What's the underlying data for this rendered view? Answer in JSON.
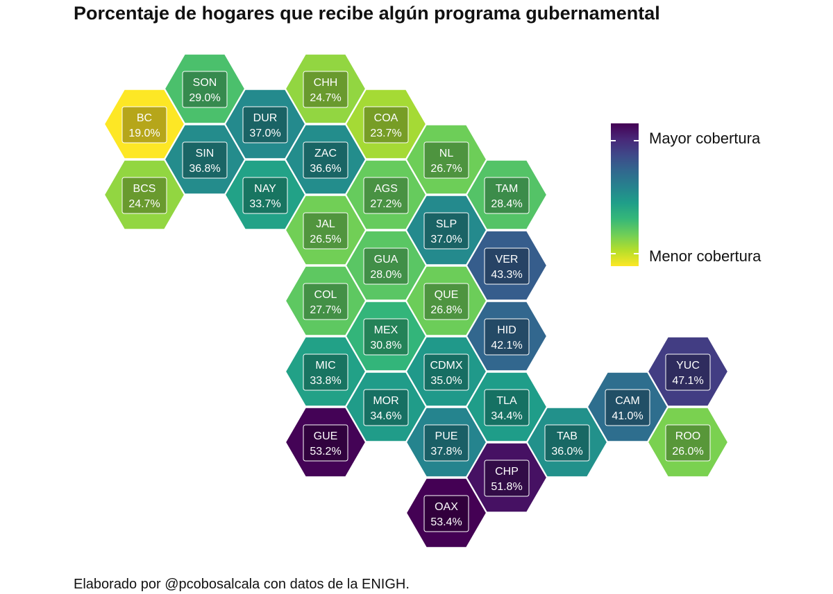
{
  "title": "Porcentaje de hogares que recibe algún programa gubernamental",
  "caption": "Elaborado por @pcobosalcala con datos de la ENIGH.",
  "legend": {
    "max_label": "Mayor cobertura",
    "min_label": "Menor cobertura",
    "palette": "viridis (reversed)",
    "colors": [
      "#fde725",
      "#b5de2b",
      "#6ece58",
      "#35b779",
      "#1f9e89",
      "#26828e",
      "#31688e",
      "#3e4989",
      "#482878",
      "#440154"
    ]
  },
  "chart_data": {
    "type": "hexbin-map",
    "value_range": [
      19.0,
      53.4
    ],
    "states": [
      {
        "code": "SON",
        "value": 29.0,
        "label": "29.0%",
        "col": 3,
        "row": 0
      },
      {
        "code": "CHH",
        "value": 24.7,
        "label": "24.7%",
        "col": 5,
        "row": 0
      },
      {
        "code": "BC",
        "value": 19.0,
        "label": "19.0%",
        "col": 2,
        "row": 1
      },
      {
        "code": "DUR",
        "value": 37.0,
        "label": "37.0%",
        "col": 4,
        "row": 1
      },
      {
        "code": "COA",
        "value": 23.7,
        "label": "23.7%",
        "col": 6,
        "row": 1
      },
      {
        "code": "SIN",
        "value": 36.8,
        "label": "36.8%",
        "col": 3,
        "row": 2
      },
      {
        "code": "ZAC",
        "value": 36.6,
        "label": "36.6%",
        "col": 5,
        "row": 2
      },
      {
        "code": "NL",
        "value": 26.7,
        "label": "26.7%",
        "col": 7,
        "row": 2
      },
      {
        "code": "BCS",
        "value": 24.7,
        "label": "24.7%",
        "col": 2,
        "row": 3
      },
      {
        "code": "NAY",
        "value": 33.7,
        "label": "33.7%",
        "col": 4,
        "row": 3
      },
      {
        "code": "AGS",
        "value": 27.2,
        "label": "27.2%",
        "col": 6,
        "row": 3
      },
      {
        "code": "TAM",
        "value": 28.4,
        "label": "28.4%",
        "col": 8,
        "row": 3
      },
      {
        "code": "JAL",
        "value": 26.5,
        "label": "26.5%",
        "col": 5,
        "row": 4
      },
      {
        "code": "SLP",
        "value": 37.0,
        "label": "37.0%",
        "col": 7,
        "row": 4
      },
      {
        "code": "GUA",
        "value": 28.0,
        "label": "28.0%",
        "col": 6,
        "row": 5
      },
      {
        "code": "VER",
        "value": 43.3,
        "label": "43.3%",
        "col": 8,
        "row": 5
      },
      {
        "code": "COL",
        "value": 27.7,
        "label": "27.7%",
        "col": 5,
        "row": 6
      },
      {
        "code": "QUE",
        "value": 26.8,
        "label": "26.8%",
        "col": 7,
        "row": 6
      },
      {
        "code": "MEX",
        "value": 30.8,
        "label": "30.8%",
        "col": 6,
        "row": 7
      },
      {
        "code": "HID",
        "value": 42.1,
        "label": "42.1%",
        "col": 8,
        "row": 7
      },
      {
        "code": "MIC",
        "value": 33.8,
        "label": "33.8%",
        "col": 5,
        "row": 8
      },
      {
        "code": "CDMX",
        "value": 35.0,
        "label": "35.0%",
        "col": 7,
        "row": 8
      },
      {
        "code": "YUC",
        "value": 47.1,
        "label": "47.1%",
        "col": 11,
        "row": 8
      },
      {
        "code": "MOR",
        "value": 34.6,
        "label": "34.6%",
        "col": 6,
        "row": 9
      },
      {
        "code": "TLA",
        "value": 34.4,
        "label": "34.4%",
        "col": 8,
        "row": 9
      },
      {
        "code": "CAM",
        "value": 41.0,
        "label": "41.0%",
        "col": 10,
        "row": 9
      },
      {
        "code": "GUE",
        "value": 53.2,
        "label": "53.2%",
        "col": 5,
        "row": 10
      },
      {
        "code": "PUE",
        "value": 37.8,
        "label": "37.8%",
        "col": 7,
        "row": 10
      },
      {
        "code": "TAB",
        "value": 36.0,
        "label": "36.0%",
        "col": 9,
        "row": 10
      },
      {
        "code": "ROO",
        "value": 26.0,
        "label": "26.0%",
        "col": 11,
        "row": 10
      },
      {
        "code": "CHP",
        "value": 51.8,
        "label": "51.8%",
        "col": 8,
        "row": 11
      },
      {
        "code": "OAX",
        "value": 53.4,
        "label": "53.4%",
        "col": 7,
        "row": 12
      }
    ]
  }
}
